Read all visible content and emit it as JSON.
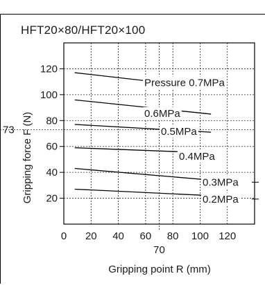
{
  "chart_data": {
    "type": "line",
    "title": "HFT20×80/HFT20×100",
    "xlabel": "Gripping point R (mm)",
    "ylabel": "Gripping force  F (N)",
    "xlim": [
      0,
      140
    ],
    "ylim": [
      0,
      140
    ],
    "x_ticks": [
      "0",
      "20",
      "40",
      "60",
      "80",
      "100",
      "120"
    ],
    "y_ticks": [
      "20",
      "40",
      "60",
      "80",
      "100",
      "120"
    ],
    "extra_x_tick": "70",
    "extra_y_tick": "73",
    "grid": true,
    "series": [
      {
        "name": "Pressure 0.7MPa",
        "x": [
          8,
          108
        ],
        "y": [
          117,
          105
        ]
      },
      {
        "name": "0.6MPa",
        "x": [
          8,
          108
        ],
        "y": [
          96,
          85
        ]
      },
      {
        "name": "0.5MPa",
        "x": [
          8,
          108
        ],
        "y": [
          77,
          71
        ]
      },
      {
        "name": "0.4MPa",
        "x": [
          8,
          108
        ],
        "y": [
          59,
          55
        ]
      },
      {
        "name": "0.3MPa",
        "x": [
          8,
          108
        ],
        "y": [
          43,
          34
        ]
      },
      {
        "name": "0.2MPa",
        "x": [
          8,
          108
        ],
        "y": [
          27,
          22
        ]
      }
    ]
  }
}
